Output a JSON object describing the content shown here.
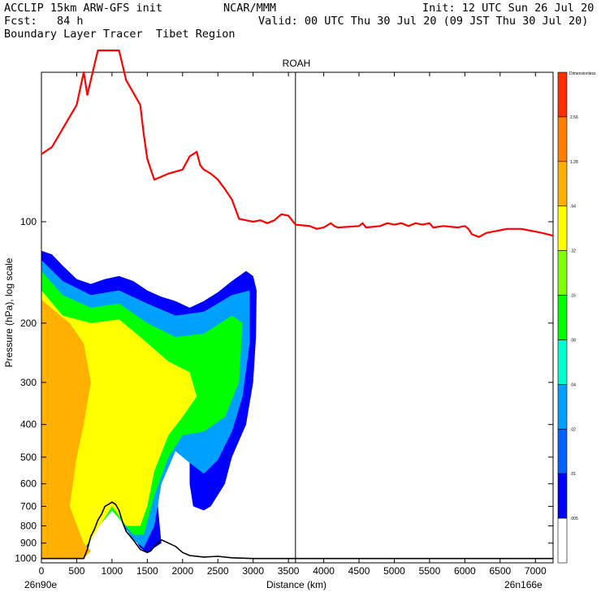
{
  "header": {
    "line1_left": "ACCLIP 15km ARW-GFS init",
    "line1_center": "NCAR/MMM",
    "line1_right": "Init: 12 UTC Sun 26 Jul 20",
    "line2_left": "Fcst:   84 h",
    "line2_right": "Valid: 00 UTC Thu 30 Jul 20 (09 JST Thu 30 Jul 20)",
    "line3_left": "Boundary Layer Tracer  Tibet Region"
  },
  "chart_data": {
    "type": "contour_cross_section",
    "panel_label": "ROAH",
    "xlabel": "Distance (km)",
    "ylabel": "Pressure (hPa), log scale",
    "x_start_label": "26n90e",
    "x_end_label": "26n166e",
    "xlim": [
      0,
      7250
    ],
    "ylim": [
      1030,
      36
    ],
    "x_ticks": [
      0,
      500,
      1000,
      1500,
      2000,
      2500,
      3000,
      3500,
      4000,
      4500,
      5000,
      5500,
      6000,
      6500,
      7000
    ],
    "y_ticks": [
      100,
      200,
      300,
      400,
      500,
      600,
      700,
      800,
      900,
      1000
    ],
    "vertical_marker_x": 3600,
    "colorbar": {
      "title": "Dimensionless",
      "levels": [
        ".005",
        ".01",
        ".02",
        ".04",
        ".08",
        ".16",
        ".32",
        ".64",
        "1.28",
        "2.56"
      ],
      "colors": [
        "#ffffff",
        "#0000ff",
        "#0063ff",
        "#00a0ff",
        "#00ffd0",
        "#00ff00",
        "#80ff00",
        "#ffff00",
        "#ffb000",
        "#ff7f00",
        "#ff3000"
      ]
    },
    "tropopause_line": {
      "color": "#ff0000",
      "points": [
        [
          0,
          63
        ],
        [
          150,
          60
        ],
        [
          300,
          53
        ],
        [
          500,
          45
        ],
        [
          600,
          36
        ],
        [
          650,
          42
        ],
        [
          700,
          38
        ],
        [
          800,
          31
        ],
        [
          1100,
          31
        ],
        [
          1200,
          38
        ],
        [
          1400,
          45
        ],
        [
          1450,
          55
        ],
        [
          1500,
          65
        ],
        [
          1550,
          70
        ],
        [
          1600,
          75
        ],
        [
          1800,
          72
        ],
        [
          2000,
          70
        ],
        [
          2100,
          64
        ],
        [
          2200,
          62
        ],
        [
          2250,
          68
        ],
        [
          2300,
          70
        ],
        [
          2400,
          72
        ],
        [
          2500,
          75
        ],
        [
          2600,
          80
        ],
        [
          2700,
          86
        ],
        [
          2800,
          98
        ],
        [
          3000,
          100
        ],
        [
          3100,
          99
        ],
        [
          3200,
          101
        ],
        [
          3300,
          99
        ],
        [
          3400,
          95
        ],
        [
          3500,
          96
        ],
        [
          3600,
          102
        ],
        [
          3800,
          103
        ],
        [
          3900,
          105
        ],
        [
          4000,
          104
        ],
        [
          4100,
          101
        ],
        [
          4150,
          103
        ],
        [
          4200,
          104
        ],
        [
          4500,
          103
        ],
        [
          4550,
          101
        ],
        [
          4600,
          104
        ],
        [
          4800,
          103
        ],
        [
          4900,
          101
        ],
        [
          5000,
          102
        ],
        [
          5100,
          101
        ],
        [
          5200,
          103
        ],
        [
          5300,
          101
        ],
        [
          5400,
          102
        ],
        [
          5500,
          101
        ],
        [
          5550,
          104
        ],
        [
          5700,
          103
        ],
        [
          5900,
          104
        ],
        [
          6000,
          103
        ],
        [
          6050,
          105
        ],
        [
          6100,
          109
        ],
        [
          6200,
          111
        ],
        [
          6300,
          108
        ],
        [
          6400,
          107
        ],
        [
          6500,
          106
        ],
        [
          6600,
          105
        ],
        [
          6800,
          105
        ],
        [
          6900,
          106
        ],
        [
          7000,
          107
        ],
        [
          7100,
          108
        ],
        [
          7250,
          110
        ]
      ]
    },
    "terrain_line": {
      "color": "#000000",
      "points": [
        [
          0,
          1000
        ],
        [
          300,
          1000
        ],
        [
          600,
          1000
        ],
        [
          650,
          940
        ],
        [
          700,
          860
        ],
        [
          750,
          820
        ],
        [
          800,
          770
        ],
        [
          850,
          740
        ],
        [
          900,
          700
        ],
        [
          950,
          690
        ],
        [
          1000,
          680
        ],
        [
          1050,
          690
        ],
        [
          1100,
          720
        ],
        [
          1150,
          780
        ],
        [
          1200,
          830
        ],
        [
          1300,
          880
        ],
        [
          1400,
          940
        ],
        [
          1500,
          960
        ],
        [
          1550,
          950
        ],
        [
          1600,
          920
        ],
        [
          1650,
          900
        ],
        [
          1700,
          880
        ],
        [
          1750,
          890
        ],
        [
          1800,
          900
        ],
        [
          1900,
          920
        ],
        [
          2000,
          960
        ],
        [
          2100,
          980
        ],
        [
          2300,
          990
        ],
        [
          2500,
          985
        ],
        [
          2700,
          995
        ],
        [
          3000,
          1000
        ],
        [
          3500,
          1000
        ],
        [
          4000,
          1000
        ],
        [
          5000,
          1000
        ],
        [
          6000,
          1000
        ],
        [
          7250,
          1000
        ]
      ]
    },
    "tracer_fields": [
      {
        "level": ".01",
        "color": "#0000ff",
        "outline": [
          [
            0,
            122
          ],
          [
            150,
            125
          ],
          [
            300,
            135
          ],
          [
            500,
            148
          ],
          [
            700,
            153
          ],
          [
            900,
            148
          ],
          [
            1100,
            145
          ],
          [
            1300,
            150
          ],
          [
            1500,
            160
          ],
          [
            1700,
            167
          ],
          [
            1900,
            172
          ],
          [
            2100,
            180
          ],
          [
            2300,
            172
          ],
          [
            2500,
            162
          ],
          [
            2700,
            150
          ],
          [
            2900,
            140
          ],
          [
            3000,
            145
          ],
          [
            3050,
            160
          ],
          [
            3040,
            220
          ],
          [
            3000,
            300
          ],
          [
            2900,
            400
          ],
          [
            2700,
            500
          ],
          [
            2600,
            600
          ],
          [
            2400,
            700
          ],
          [
            2300,
            720
          ],
          [
            2150,
            700
          ],
          [
            2100,
            600
          ],
          [
            2100,
            500
          ],
          [
            1900,
            450
          ],
          [
            1800,
            480
          ],
          [
            1700,
            560
          ],
          [
            1650,
            700
          ],
          [
            1700,
            900
          ],
          [
            1500,
            960
          ],
          [
            1400,
            930
          ],
          [
            1300,
            860
          ],
          [
            1200,
            820
          ],
          [
            1000,
            690
          ],
          [
            800,
            760
          ],
          [
            600,
            1000
          ],
          [
            0,
            1000
          ]
        ]
      },
      {
        "level": ".04",
        "color": "#00a0ff",
        "outline": [
          [
            0,
            130
          ],
          [
            300,
            150
          ],
          [
            700,
            165
          ],
          [
            1100,
            160
          ],
          [
            1500,
            175
          ],
          [
            1900,
            190
          ],
          [
            2300,
            185
          ],
          [
            2700,
            165
          ],
          [
            2950,
            160
          ],
          [
            2950,
            230
          ],
          [
            2850,
            330
          ],
          [
            2700,
            420
          ],
          [
            2500,
            510
          ],
          [
            2300,
            560
          ],
          [
            2100,
            520
          ],
          [
            1900,
            480
          ],
          [
            1700,
            600
          ],
          [
            1600,
            800
          ],
          [
            1450,
            930
          ],
          [
            1300,
            880
          ],
          [
            1000,
            700
          ],
          [
            700,
            840
          ],
          [
            600,
            1000
          ],
          [
            0,
            1000
          ]
        ]
      },
      {
        "level": ".16",
        "color": "#00ff00",
        "outline": [
          [
            0,
            140
          ],
          [
            300,
            165
          ],
          [
            700,
            180
          ],
          [
            1100,
            175
          ],
          [
            1500,
            200
          ],
          [
            1900,
            220
          ],
          [
            2300,
            215
          ],
          [
            2700,
            190
          ],
          [
            2850,
            200
          ],
          [
            2800,
            300
          ],
          [
            2600,
            380
          ],
          [
            2300,
            420
          ],
          [
            2000,
            430
          ],
          [
            1800,
            500
          ],
          [
            1600,
            650
          ],
          [
            1450,
            850
          ],
          [
            1300,
            850
          ],
          [
            1000,
            720
          ],
          [
            700,
            860
          ],
          [
            550,
            1000
          ],
          [
            0,
            1000
          ]
        ]
      },
      {
        "level": ".64",
        "color": "#ffff00",
        "outline": [
          [
            0,
            160
          ],
          [
            300,
            190
          ],
          [
            700,
            200
          ],
          [
            1100,
            195
          ],
          [
            1400,
            220
          ],
          [
            1800,
            260
          ],
          [
            2100,
            280
          ],
          [
            2200,
            330
          ],
          [
            2000,
            380
          ],
          [
            1800,
            430
          ],
          [
            1600,
            550
          ],
          [
            1500,
            700
          ],
          [
            1400,
            800
          ],
          [
            1200,
            800
          ],
          [
            1000,
            700
          ],
          [
            700,
            880
          ],
          [
            500,
            1000
          ],
          [
            0,
            1000
          ]
        ]
      },
      {
        "level": "1.28",
        "color": "#ffb000",
        "outline": [
          [
            0,
            170
          ],
          [
            200,
            185
          ],
          [
            400,
            200
          ],
          [
            600,
            230
          ],
          [
            700,
            300
          ],
          [
            600,
            400
          ],
          [
            500,
            500
          ],
          [
            400,
            700
          ],
          [
            600,
            900
          ],
          [
            700,
            950
          ],
          [
            600,
            1000
          ],
          [
            0,
            1000
          ]
        ]
      }
    ]
  }
}
